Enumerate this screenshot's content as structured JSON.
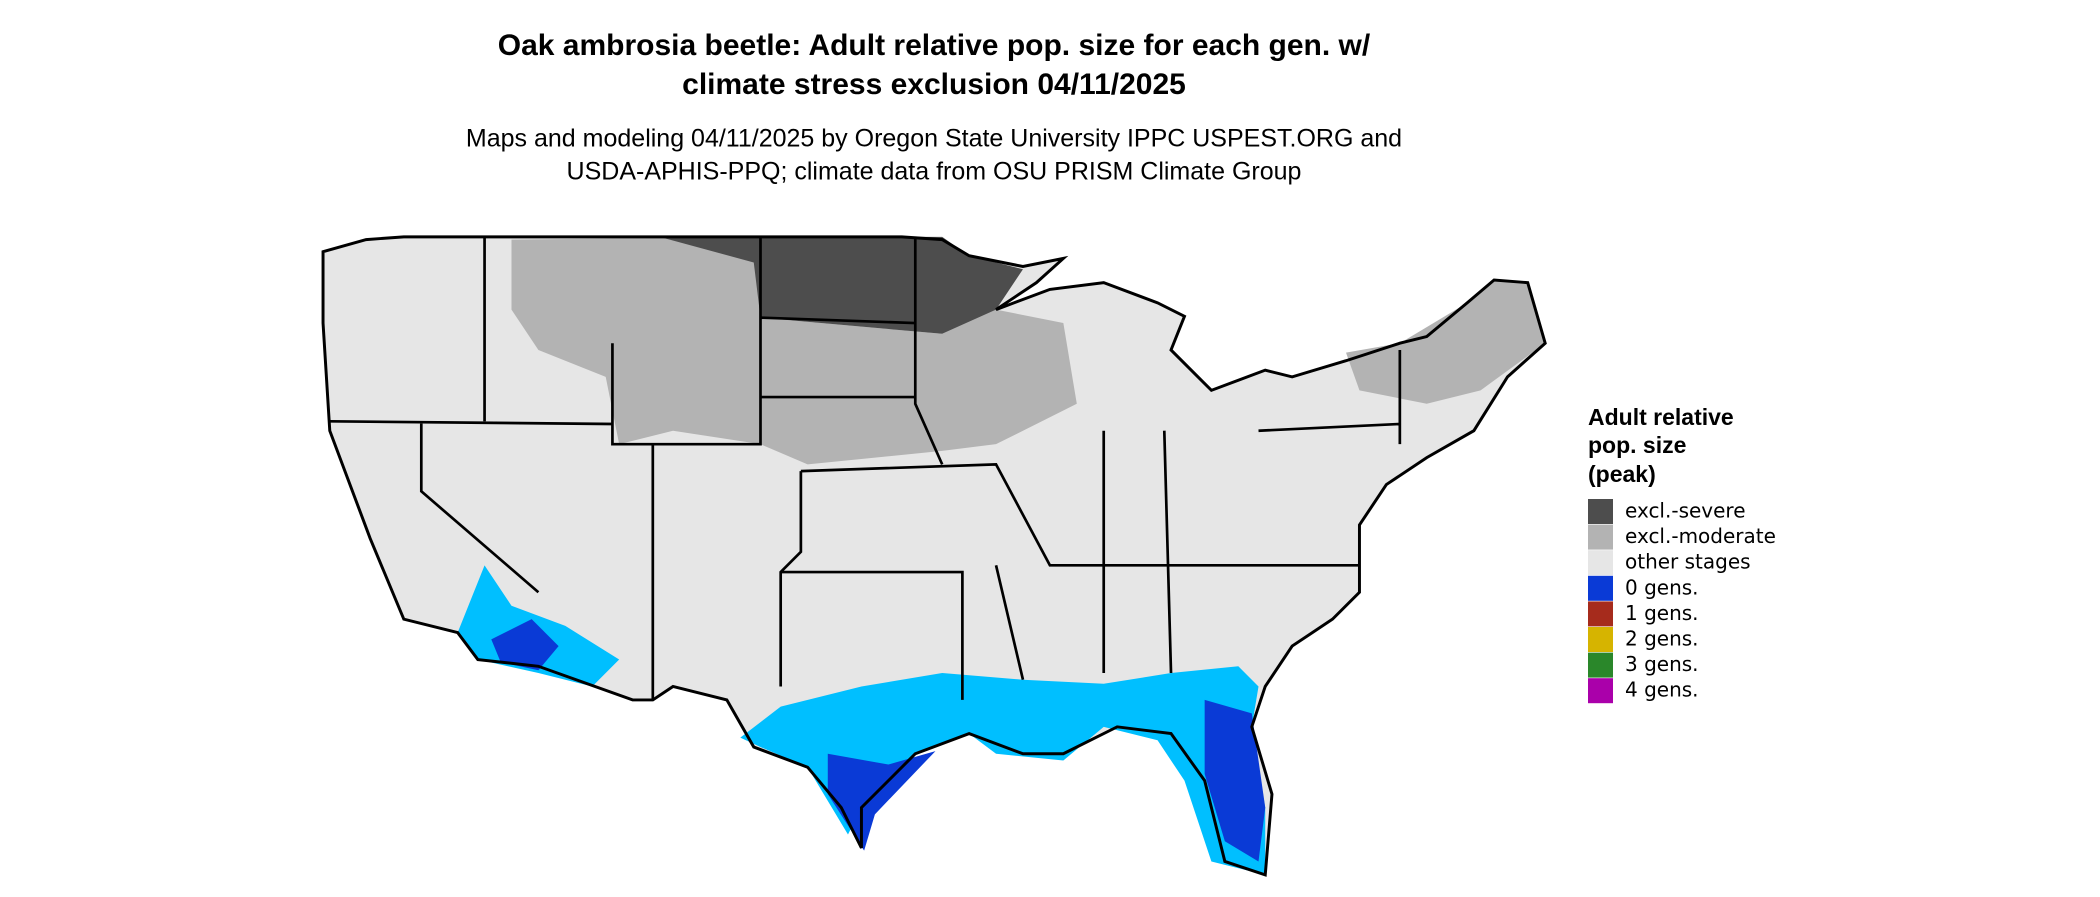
{
  "header": {
    "title": [
      "Oak ambrosia beetle: Adult relative pop. size for each gen. w/",
      "climate stress exclusion 04/11/2025"
    ],
    "subtitle": [
      "Maps and modeling 04/11/2025 by Oregon State University IPPC USPEST.ORG and",
      "USDA-APHIS-PPQ; climate data from OSU PRISM Climate Group"
    ]
  },
  "legend": {
    "title": [
      "Adult relative",
      "pop. size",
      "(peak)"
    ],
    "items": [
      {
        "label": "excl.-severe",
        "color": "#4d4d4d"
      },
      {
        "label": "excl.-moderate",
        "color": "#b3b3b3"
      },
      {
        "label": "other stages",
        "color": "#e6e6e6"
      },
      {
        "label": "0 gens.",
        "color": "#0a3ad6"
      },
      {
        "label": "1 gens.",
        "color": "#a62b1c"
      },
      {
        "label": "2 gens.",
        "color": "#d6b400"
      },
      {
        "label": "3 gens.",
        "color": "#2a872a"
      },
      {
        "label": "4 gens.",
        "color": "#aa00aa"
      }
    ]
  }
}
